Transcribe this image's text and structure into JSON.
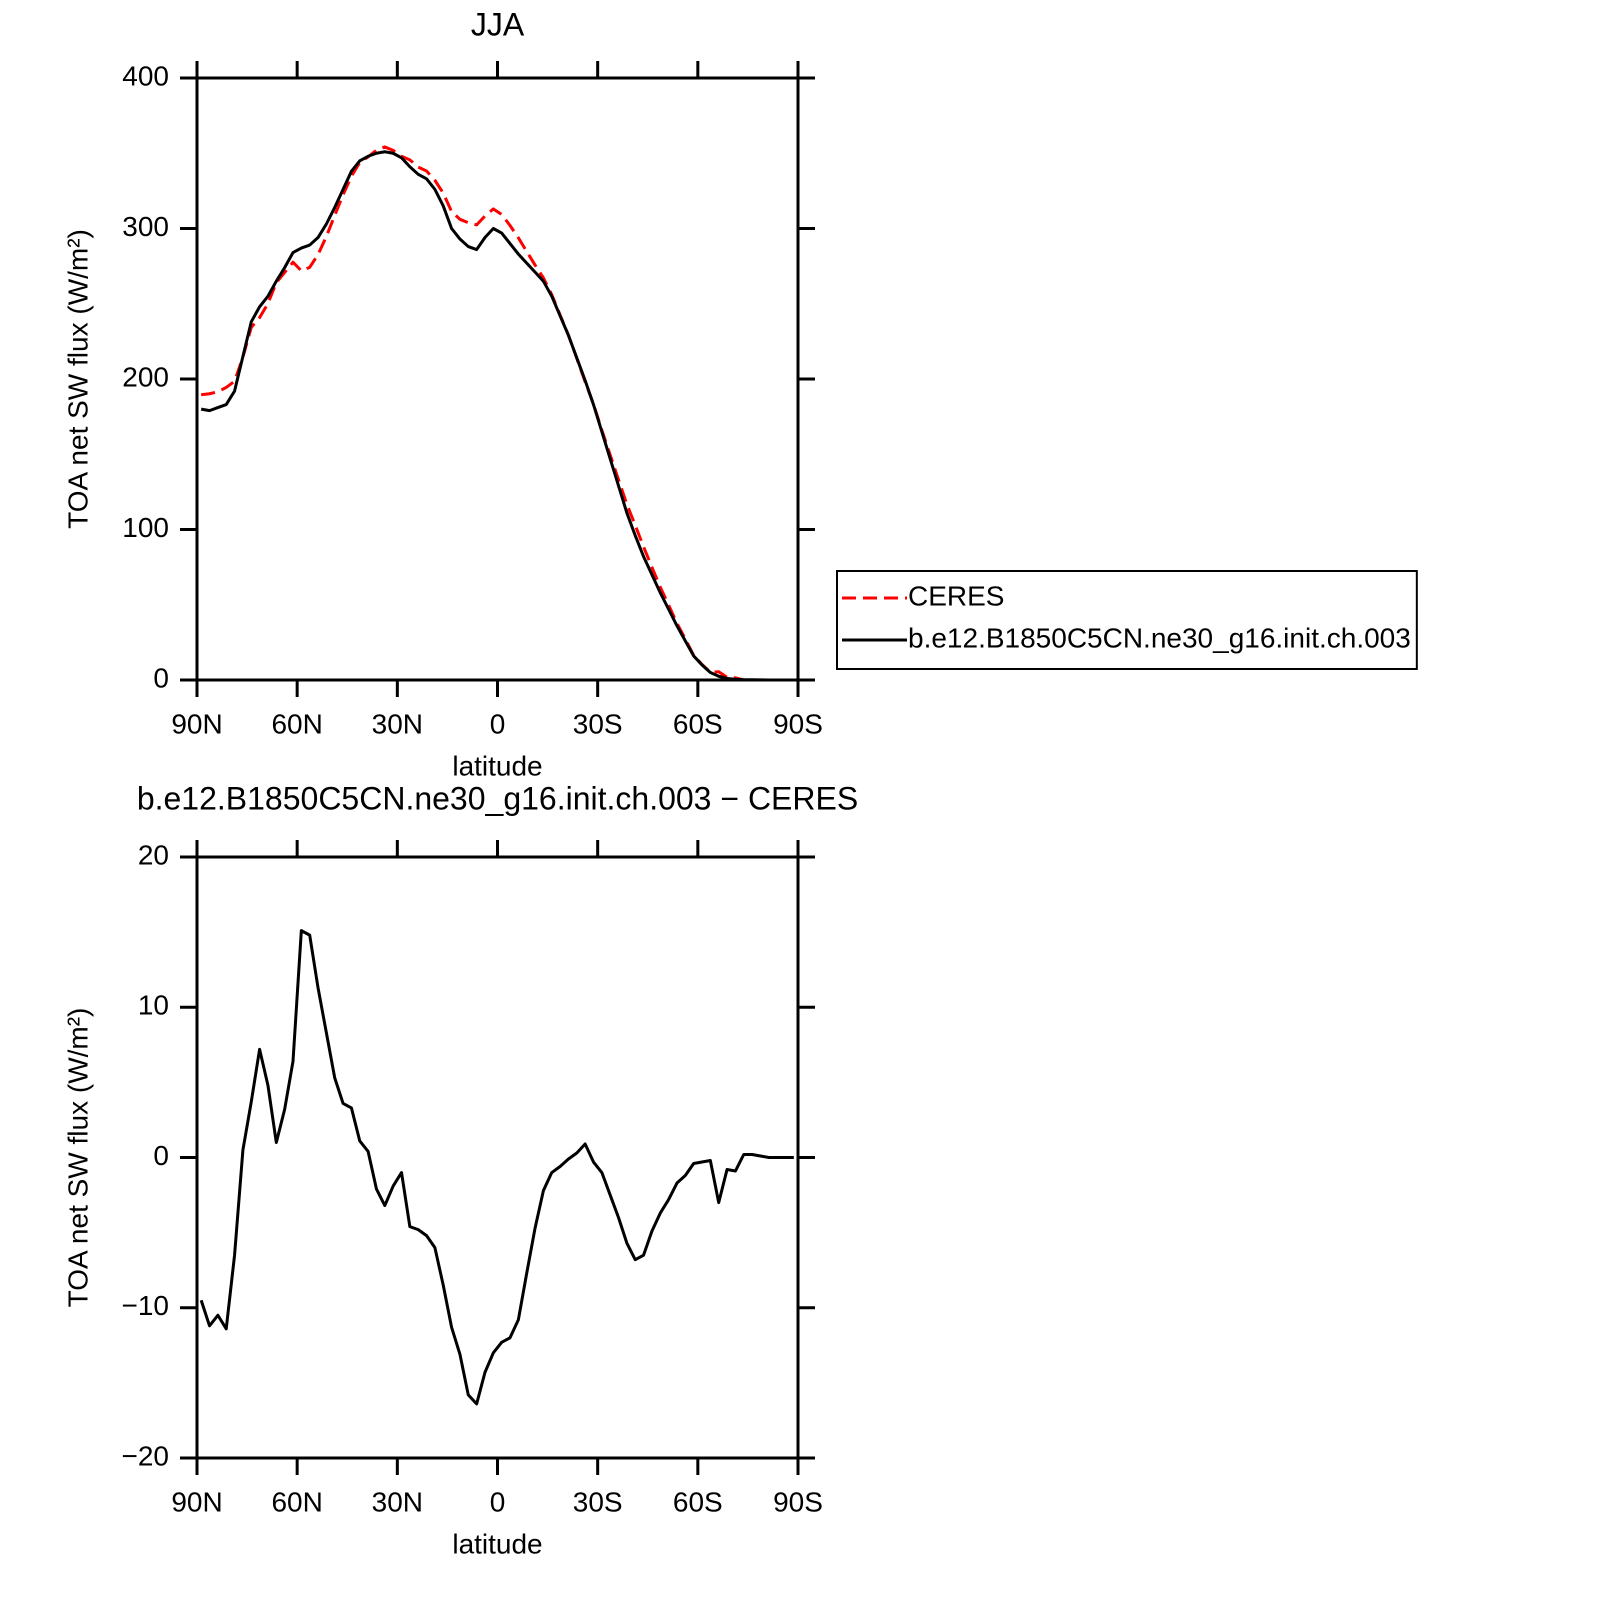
{
  "chart_data": [
    {
      "type": "line",
      "title": "JJA",
      "xlabel": "latitude",
      "ylabel": "TOA net SW flux (W/m²)",
      "x": [
        88.75,
        86.25,
        83.75,
        81.25,
        78.75,
        76.25,
        73.75,
        71.25,
        68.75,
        66.25,
        63.75,
        61.25,
        58.75,
        56.25,
        53.75,
        51.25,
        48.75,
        46.25,
        43.75,
        41.25,
        38.75,
        36.25,
        33.75,
        31.25,
        28.75,
        26.25,
        23.75,
        21.25,
        18.75,
        16.25,
        13.75,
        11.25,
        8.75,
        6.25,
        3.75,
        1.25,
        -1.25,
        -3.75,
        -6.25,
        -8.75,
        -11.25,
        -13.75,
        -16.25,
        -18.75,
        -21.25,
        -23.75,
        -26.25,
        -28.75,
        -31.25,
        -33.75,
        -36.25,
        -38.75,
        -41.25,
        -43.75,
        -46.25,
        -48.75,
        -51.25,
        -53.75,
        -56.25,
        -58.75,
        -61.25,
        -63.75,
        -66.25,
        -68.75,
        -71.25,
        -73.75,
        -76.25,
        -78.75,
        -81.25,
        -83.75,
        -86.25,
        -88.75
      ],
      "series": [
        {
          "name": "CERES",
          "color": "#ff0000",
          "dash": true,
          "values": [
            189.5,
            190.2,
            191.5,
            194.4,
            198.5,
            214.5,
            234.3,
            240.8,
            250.2,
            264,
            270.8,
            277.6,
            271.9,
            274.2,
            282.7,
            294.7,
            308.7,
            322.4,
            334.7,
            343.9,
            347.6,
            352.1,
            354.2,
            351.9,
            348,
            345.6,
            340.8,
            338.2,
            332,
            323.5,
            311.3,
            306.1,
            303.8,
            302.4,
            308.3,
            313,
            309.3,
            302,
            293.8,
            284.7,
            275.7,
            267.2,
            256,
            242.6,
            229.1,
            213.7,
            198.1,
            183.3,
            166,
            149.5,
            133,
            116.7,
            102.8,
            88.5,
            74.9,
            61.7,
            49.8,
            37.7,
            27.2,
            16.4,
            10.3,
            5.2,
            5.5,
            1.8,
            1.4,
            0,
            0,
            0,
            0,
            0,
            0,
            0
          ]
        },
        {
          "name": "b.e12.B1850C5CN.ne30_g16.init.ch.003",
          "color": "#000000",
          "dash": false,
          "values": [
            180,
            179,
            181,
            183,
            192,
            215,
            238,
            248,
            255,
            265,
            274,
            284,
            287,
            289,
            294,
            303,
            314,
            326,
            338,
            345,
            348,
            350,
            351,
            350,
            347,
            341,
            336,
            333,
            326,
            315,
            300,
            293,
            288,
            286,
            294,
            300,
            297,
            290,
            283,
            277,
            271,
            265,
            255,
            242,
            229,
            214,
            199,
            183,
            165,
            147,
            129,
            111,
            96,
            82,
            70,
            58,
            47,
            36,
            26,
            16,
            10,
            5,
            2.5,
            1,
            0.5,
            0.2,
            0.2,
            0.1,
            0,
            0,
            0,
            0
          ]
        }
      ],
      "xlim": [
        90,
        -90
      ],
      "xticks": [
        {
          "value": 90,
          "label": "90N"
        },
        {
          "value": 60,
          "label": "60N"
        },
        {
          "value": 30,
          "label": "30N"
        },
        0,
        {
          "value": -30,
          "label": "30S"
        },
        {
          "value": -60,
          "label": "60S"
        },
        {
          "value": -90,
          "label": "90S"
        }
      ],
      "ylim": [
        0,
        400
      ],
      "yticks": [
        0,
        100,
        200,
        300,
        400
      ],
      "legend": "right"
    },
    {
      "type": "line",
      "title": "b.e12.B1850C5CN.ne30_g16.init.ch.003 − CERES",
      "xlabel": "latitude",
      "ylabel": "TOA net SW flux (W/m²)",
      "x": [
        88.75,
        86.25,
        83.75,
        81.25,
        78.75,
        76.25,
        73.75,
        71.25,
        68.75,
        66.25,
        63.75,
        61.25,
        58.75,
        56.25,
        53.75,
        51.25,
        48.75,
        46.25,
        43.75,
        41.25,
        38.75,
        36.25,
        33.75,
        31.25,
        28.75,
        26.25,
        23.75,
        21.25,
        18.75,
        16.25,
        13.75,
        11.25,
        8.75,
        6.25,
        3.75,
        1.25,
        -1.25,
        -3.75,
        -6.25,
        -8.75,
        -11.25,
        -13.75,
        -16.25,
        -18.75,
        -21.25,
        -23.75,
        -26.25,
        -28.75,
        -31.25,
        -33.75,
        -36.25,
        -38.75,
        -41.25,
        -43.75,
        -46.25,
        -48.75,
        -51.25,
        -53.75,
        -56.25,
        -58.75,
        -61.25,
        -63.75,
        -66.25,
        -68.75,
        -71.25,
        -73.75,
        -76.25,
        -78.75,
        -81.25,
        -83.75,
        -86.25,
        -88.75
      ],
      "series": [
        {
          "color": "#000000",
          "dash": false,
          "values": [
            -9.5,
            -11.2,
            -10.5,
            -11.4,
            -6.5,
            0.5,
            3.7,
            7.2,
            4.8,
            1.0,
            3.2,
            6.4,
            15.1,
            14.8,
            11.3,
            8.3,
            5.3,
            3.6,
            3.3,
            1.1,
            0.4,
            -2.1,
            -3.2,
            -1.9,
            -1.0,
            -4.6,
            -4.8,
            -5.2,
            -6.0,
            -8.5,
            -11.3,
            -13.1,
            -15.8,
            -16.4,
            -14.3,
            -13.0,
            -12.3,
            -12.0,
            -10.8,
            -7.7,
            -4.7,
            -2.2,
            -1.0,
            -0.6,
            -0.1,
            0.3,
            0.9,
            -0.3,
            -1.0,
            -2.5,
            -4.0,
            -5.7,
            -6.8,
            -6.5,
            -4.9,
            -3.7,
            -2.8,
            -1.7,
            -1.2,
            -0.4,
            -0.3,
            -0.2,
            -3.0,
            -0.8,
            -0.9,
            0.2,
            0.2,
            0.1,
            0,
            0,
            0,
            0
          ]
        }
      ],
      "xlim": [
        90,
        -90
      ],
      "xticks": [
        {
          "value": 90,
          "label": "90N"
        },
        {
          "value": 60,
          "label": "60N"
        },
        {
          "value": 30,
          "label": "30N"
        },
        0,
        {
          "value": -30,
          "label": "30S"
        },
        {
          "value": -60,
          "label": "60S"
        },
        {
          "value": -90,
          "label": "90S"
        }
      ],
      "ylim": [
        -20,
        20
      ],
      "yticks": [
        {
          "value": -20,
          "label": "−20"
        },
        {
          "value": -10,
          "label": "−10"
        },
        0,
        10,
        20
      ]
    }
  ]
}
